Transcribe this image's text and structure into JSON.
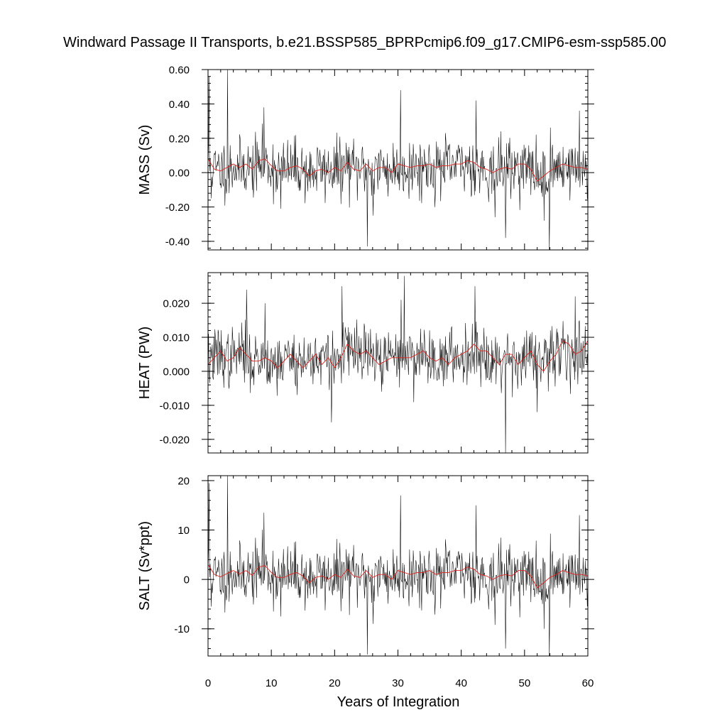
{
  "chart_data": {
    "type": "line",
    "title": "Windward Passage II Transports, b.e21.BSSP585_BPRPcmip6.f09_g17.CMIP6-esm-ssp585.00",
    "xlabel": "Years of Integration",
    "xlim": [
      0,
      60
    ],
    "xticks": [
      0,
      10,
      20,
      30,
      40,
      50,
      60
    ],
    "xtick_labels": [
      "0",
      "10",
      "20",
      "30",
      "40",
      "50",
      "60"
    ],
    "grid": false,
    "colors": {
      "monthly": "#000000",
      "smoothed": "#e0201a"
    },
    "panels": [
      {
        "ylabel": "MASS (Sv)",
        "ylim": [
          -0.45,
          0.6
        ],
        "yticks": [
          0.6,
          0.4,
          0.2,
          0.0,
          -0.2,
          -0.4
        ],
        "ytick_labels": [
          "0.60",
          "0.40",
          "0.20",
          "0.00",
          "-0.20",
          "-0.40"
        ],
        "mean": 0.02,
        "spread": 0.085,
        "seed": 11,
        "smooth": [
          [
            0,
            0.08
          ],
          [
            1,
            0.02
          ],
          [
            2,
            0.01
          ],
          [
            3,
            0.03
          ],
          [
            4,
            0.05
          ],
          [
            5,
            0.03
          ],
          [
            6,
            0.05
          ],
          [
            7,
            0.02
          ],
          [
            8,
            0.07
          ],
          [
            9,
            0.08
          ],
          [
            10,
            0.04
          ],
          [
            11,
            0.01
          ],
          [
            12,
            0.01
          ],
          [
            13,
            0.03
          ],
          [
            14,
            0.04
          ],
          [
            15,
            0.02
          ],
          [
            16,
            -0.02
          ],
          [
            17,
            0.01
          ],
          [
            18,
            0.02
          ],
          [
            19,
            0.0
          ],
          [
            20,
            0.03
          ],
          [
            21,
            0.01
          ],
          [
            22,
            0.06
          ],
          [
            23,
            0.02
          ],
          [
            24,
            0.01
          ],
          [
            25,
            0.05
          ],
          [
            26,
            0.01
          ],
          [
            27,
            0.03
          ],
          [
            28,
            0.03
          ],
          [
            29,
            0.0
          ],
          [
            30,
            0.05
          ],
          [
            31,
            0.04
          ],
          [
            32,
            0.03
          ],
          [
            33,
            0.04
          ],
          [
            34,
            0.04
          ],
          [
            35,
            0.05
          ],
          [
            36,
            0.03
          ],
          [
            37,
            0.04
          ],
          [
            38,
            0.04
          ],
          [
            39,
            0.05
          ],
          [
            40,
            0.05
          ],
          [
            41,
            0.07
          ],
          [
            42,
            0.06
          ],
          [
            43,
            0.03
          ],
          [
            44,
            0.02
          ],
          [
            45,
            0.0
          ],
          [
            46,
            0.02
          ],
          [
            47,
            0.03
          ],
          [
            48,
            0.02
          ],
          [
            49,
            0.05
          ],
          [
            50,
            0.05
          ],
          [
            51,
            0.02
          ],
          [
            52,
            -0.05
          ],
          [
            53,
            -0.02
          ],
          [
            54,
            0.01
          ],
          [
            55,
            0.03
          ],
          [
            56,
            0.05
          ],
          [
            57,
            0.04
          ],
          [
            58,
            0.03
          ],
          [
            59,
            0.03
          ],
          [
            60,
            0.02
          ]
        ],
        "spikes": [
          [
            0.2,
            0.56
          ],
          [
            0.5,
            -0.15
          ],
          [
            3.1,
            0.6
          ],
          [
            3.3,
            -0.12
          ],
          [
            8.8,
            0.38
          ],
          [
            11.5,
            -0.21
          ],
          [
            25.2,
            -0.43
          ],
          [
            30.4,
            0.48
          ],
          [
            42.3,
            0.42
          ],
          [
            45.3,
            -0.26
          ],
          [
            47.0,
            -0.38
          ],
          [
            53.9,
            -0.45
          ],
          [
            53.1,
            -0.28
          ],
          [
            58.7,
            0.36
          ],
          [
            26.1,
            -0.25
          ]
        ]
      },
      {
        "ylabel": "HEAT (PW)",
        "ylim": [
          -0.024,
          0.029
        ],
        "yticks": [
          0.02,
          0.01,
          0.0,
          -0.01,
          -0.02
        ],
        "ytick_labels": [
          "0.020",
          "0.010",
          "0.000",
          "-0.010",
          "-0.020"
        ],
        "mean": 0.004,
        "spread": 0.0043,
        "seed": 37,
        "smooth": [
          [
            0,
            0.002
          ],
          [
            1,
            0.004
          ],
          [
            2,
            0.006
          ],
          [
            3,
            0.003
          ],
          [
            4,
            0.004
          ],
          [
            5,
            0.007
          ],
          [
            6,
            0.005
          ],
          [
            7,
            0.003
          ],
          [
            8,
            0.003
          ],
          [
            9,
            0.004
          ],
          [
            10,
            0.003
          ],
          [
            11,
            0.001
          ],
          [
            12,
            0.003
          ],
          [
            13,
            0.005
          ],
          [
            14,
            0.003
          ],
          [
            15,
            0.001
          ],
          [
            16,
            0.003
          ],
          [
            17,
            0.005
          ],
          [
            18,
            0.002
          ],
          [
            19,
            0.004
          ],
          [
            20,
            0.001
          ],
          [
            21,
            0.004
          ],
          [
            22,
            0.008
          ],
          [
            23,
            0.006
          ],
          [
            24,
            0.005
          ],
          [
            25,
            0.006
          ],
          [
            26,
            0.004
          ],
          [
            27,
            0.002
          ],
          [
            28,
            0.003
          ],
          [
            29,
            0.004
          ],
          [
            30,
            0.004
          ],
          [
            31,
            0.004
          ],
          [
            32,
            0.004
          ],
          [
            33,
            0.005
          ],
          [
            34,
            0.006
          ],
          [
            35,
            0.004
          ],
          [
            36,
            0.003
          ],
          [
            37,
            0.004
          ],
          [
            38,
            0.002
          ],
          [
            39,
            0.004
          ],
          [
            40,
            0.005
          ],
          [
            41,
            0.006
          ],
          [
            42,
            0.008
          ],
          [
            43,
            0.006
          ],
          [
            44,
            0.006
          ],
          [
            45,
            0.004
          ],
          [
            46,
            0.002
          ],
          [
            47,
            0.005
          ],
          [
            48,
            0.005
          ],
          [
            49,
            0.002
          ],
          [
            50,
            0.004
          ],
          [
            51,
            0.006
          ],
          [
            52,
            0.002
          ],
          [
            53,
            0.0
          ],
          [
            54,
            0.003
          ],
          [
            55,
            0.005
          ],
          [
            56,
            0.009
          ],
          [
            57,
            0.008
          ],
          [
            58,
            0.005
          ],
          [
            59,
            0.006
          ],
          [
            60,
            0.009
          ]
        ],
        "spikes": [
          [
            21.2,
            0.025
          ],
          [
            31.0,
            0.028
          ],
          [
            30.5,
            0.021
          ],
          [
            42.2,
            0.025
          ],
          [
            47.0,
            -0.024
          ],
          [
            19.5,
            -0.015
          ],
          [
            58.0,
            0.022
          ],
          [
            52.0,
            -0.012
          ],
          [
            6.1,
            0.024
          ],
          [
            9.0,
            0.02
          ]
        ]
      },
      {
        "ylabel": "SALT (Sv*ppt)",
        "ylim": [
          -15.5,
          21
        ],
        "yticks": [
          20,
          10,
          0,
          -10
        ],
        "ytick_labels": [
          "20",
          "10",
          "0",
          "-10"
        ],
        "mean": 0.7,
        "spread": 3.0,
        "seed": 11,
        "smooth": [
          [
            0,
            3.0
          ],
          [
            1,
            1.0
          ],
          [
            2,
            0.5
          ],
          [
            3,
            1.2
          ],
          [
            4,
            1.8
          ],
          [
            5,
            1.1
          ],
          [
            6,
            1.8
          ],
          [
            7,
            0.8
          ],
          [
            8,
            2.5
          ],
          [
            9,
            2.8
          ],
          [
            10,
            1.4
          ],
          [
            11,
            0.4
          ],
          [
            12,
            0.4
          ],
          [
            13,
            1.0
          ],
          [
            14,
            1.4
          ],
          [
            15,
            0.7
          ],
          [
            16,
            -0.7
          ],
          [
            17,
            0.4
          ],
          [
            18,
            0.7
          ],
          [
            19,
            0.0
          ],
          [
            20,
            1.0
          ],
          [
            21,
            0.4
          ],
          [
            22,
            2.1
          ],
          [
            23,
            0.7
          ],
          [
            24,
            0.4
          ],
          [
            25,
            1.8
          ],
          [
            26,
            0.4
          ],
          [
            27,
            1.0
          ],
          [
            28,
            1.0
          ],
          [
            29,
            0.0
          ],
          [
            30,
            1.8
          ],
          [
            31,
            1.4
          ],
          [
            32,
            1.0
          ],
          [
            33,
            1.4
          ],
          [
            34,
            1.4
          ],
          [
            35,
            1.8
          ],
          [
            36,
            1.0
          ],
          [
            37,
            1.4
          ],
          [
            38,
            1.4
          ],
          [
            39,
            1.8
          ],
          [
            40,
            1.8
          ],
          [
            41,
            2.5
          ],
          [
            42,
            2.1
          ],
          [
            43,
            1.0
          ],
          [
            44,
            0.7
          ],
          [
            45,
            0.0
          ],
          [
            46,
            0.7
          ],
          [
            47,
            1.0
          ],
          [
            48,
            0.7
          ],
          [
            49,
            1.8
          ],
          [
            50,
            1.8
          ],
          [
            51,
            0.7
          ],
          [
            52,
            -1.7
          ],
          [
            53,
            -0.7
          ],
          [
            54,
            0.4
          ],
          [
            55,
            1.0
          ],
          [
            56,
            1.8
          ],
          [
            57,
            1.4
          ],
          [
            58,
            1.0
          ],
          [
            59,
            1.0
          ],
          [
            60,
            0.7
          ]
        ],
        "spikes": [
          [
            0.2,
            19.5
          ],
          [
            0.5,
            -5.5
          ],
          [
            3.1,
            21
          ],
          [
            3.3,
            -4.5
          ],
          [
            8.8,
            13.5
          ],
          [
            11.5,
            -7.5
          ],
          [
            25.2,
            -15.2
          ],
          [
            30.4,
            17
          ],
          [
            42.3,
            15
          ],
          [
            45.3,
            -9.2
          ],
          [
            47.0,
            -14
          ],
          [
            53.9,
            -15.5
          ],
          [
            53.1,
            -10
          ],
          [
            58.7,
            13
          ],
          [
            26.1,
            -9
          ]
        ]
      }
    ]
  }
}
